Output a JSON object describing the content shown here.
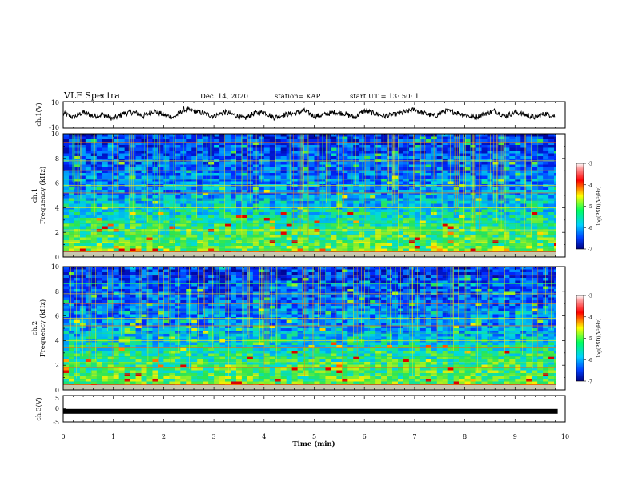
{
  "header": {
    "title": "VLF Spectra",
    "date": "Dec. 14, 2020",
    "station": "station= KAP",
    "start": "start UT =  13: 50: 1"
  },
  "chart_data": [
    {
      "type": "line",
      "name": "ch1-waveform",
      "ylabel": "ch.1(V)",
      "ylim": [
        -10,
        10
      ],
      "ytick_labels": [
        "-10",
        "10"
      ],
      "xlim": [
        0,
        10
      ],
      "x": [
        0,
        0.2,
        0.4,
        0.6,
        0.8,
        1.0,
        1.2,
        1.4,
        1.6,
        1.8,
        2.0,
        2.2,
        2.4,
        2.6,
        2.8,
        3.0,
        3.2,
        3.4,
        3.6,
        3.8,
        4.0,
        4.2,
        4.4,
        4.6,
        4.8,
        5.0,
        5.2,
        5.4,
        5.6,
        5.8,
        6.0,
        6.2,
        6.4,
        6.6,
        6.8,
        7.0,
        7.2,
        7.4,
        7.6,
        7.8,
        8.0,
        8.2,
        8.4,
        8.6,
        8.8,
        9.0,
        9.2,
        9.4,
        9.6,
        9.8
      ],
      "values": [
        1,
        -2,
        2,
        -1,
        0,
        -3,
        1,
        2,
        -1,
        3,
        0,
        -2,
        4,
        3,
        1,
        -1,
        2,
        0,
        -3,
        1,
        2,
        -2,
        0,
        1,
        3,
        -1,
        0,
        2,
        1,
        -2,
        3,
        1,
        -1,
        0,
        2,
        4,
        1,
        -1,
        3,
        2,
        0,
        -2,
        1,
        3,
        -1,
        2,
        0,
        -2,
        1,
        -1
      ]
    },
    {
      "type": "heatmap",
      "name": "ch1-spectrogram",
      "ylabel": "Frequency (kHz)",
      "ylabel2": "ch.1",
      "ylim": [
        0,
        10
      ],
      "xlim": [
        0,
        10
      ],
      "ytick_labels": [
        "0",
        "2",
        "4",
        "6",
        "8",
        "10"
      ],
      "colorbar": {
        "label": "log(PSD)(V²/Hz)",
        "range": [
          -7,
          -3
        ],
        "tick_labels": [
          "-3",
          "-4",
          "-5",
          "-6",
          "-7"
        ]
      }
    },
    {
      "type": "heatmap",
      "name": "ch2-spectrogram",
      "ylabel": "Frequency (kHz)",
      "ylabel2": "ch.2",
      "ylim": [
        0,
        10
      ],
      "xlim": [
        0,
        10
      ],
      "ytick_labels": [
        "0",
        "2",
        "4",
        "6",
        "8",
        "10"
      ],
      "colorbar": {
        "label": "log(PSD)(V²/Hz)",
        "range": [
          -7,
          -3
        ],
        "tick_labels": [
          "-3",
          "-4",
          "-5",
          "-6",
          "-7"
        ]
      }
    },
    {
      "type": "line",
      "name": "ch3-signal",
      "ylabel": "ch.3(V)",
      "ylim": [
        -5,
        5
      ],
      "ytick_labels": [
        "-5",
        "0",
        "5"
      ],
      "xlim": [
        0,
        10
      ],
      "x": [
        0,
        9.85
      ],
      "values": [
        -1,
        -1
      ]
    }
  ],
  "xaxis": {
    "label": "Time (min)",
    "tick_labels": [
      "0",
      "1",
      "2",
      "3",
      "4",
      "5",
      "6",
      "7",
      "8",
      "9",
      "10"
    ]
  }
}
